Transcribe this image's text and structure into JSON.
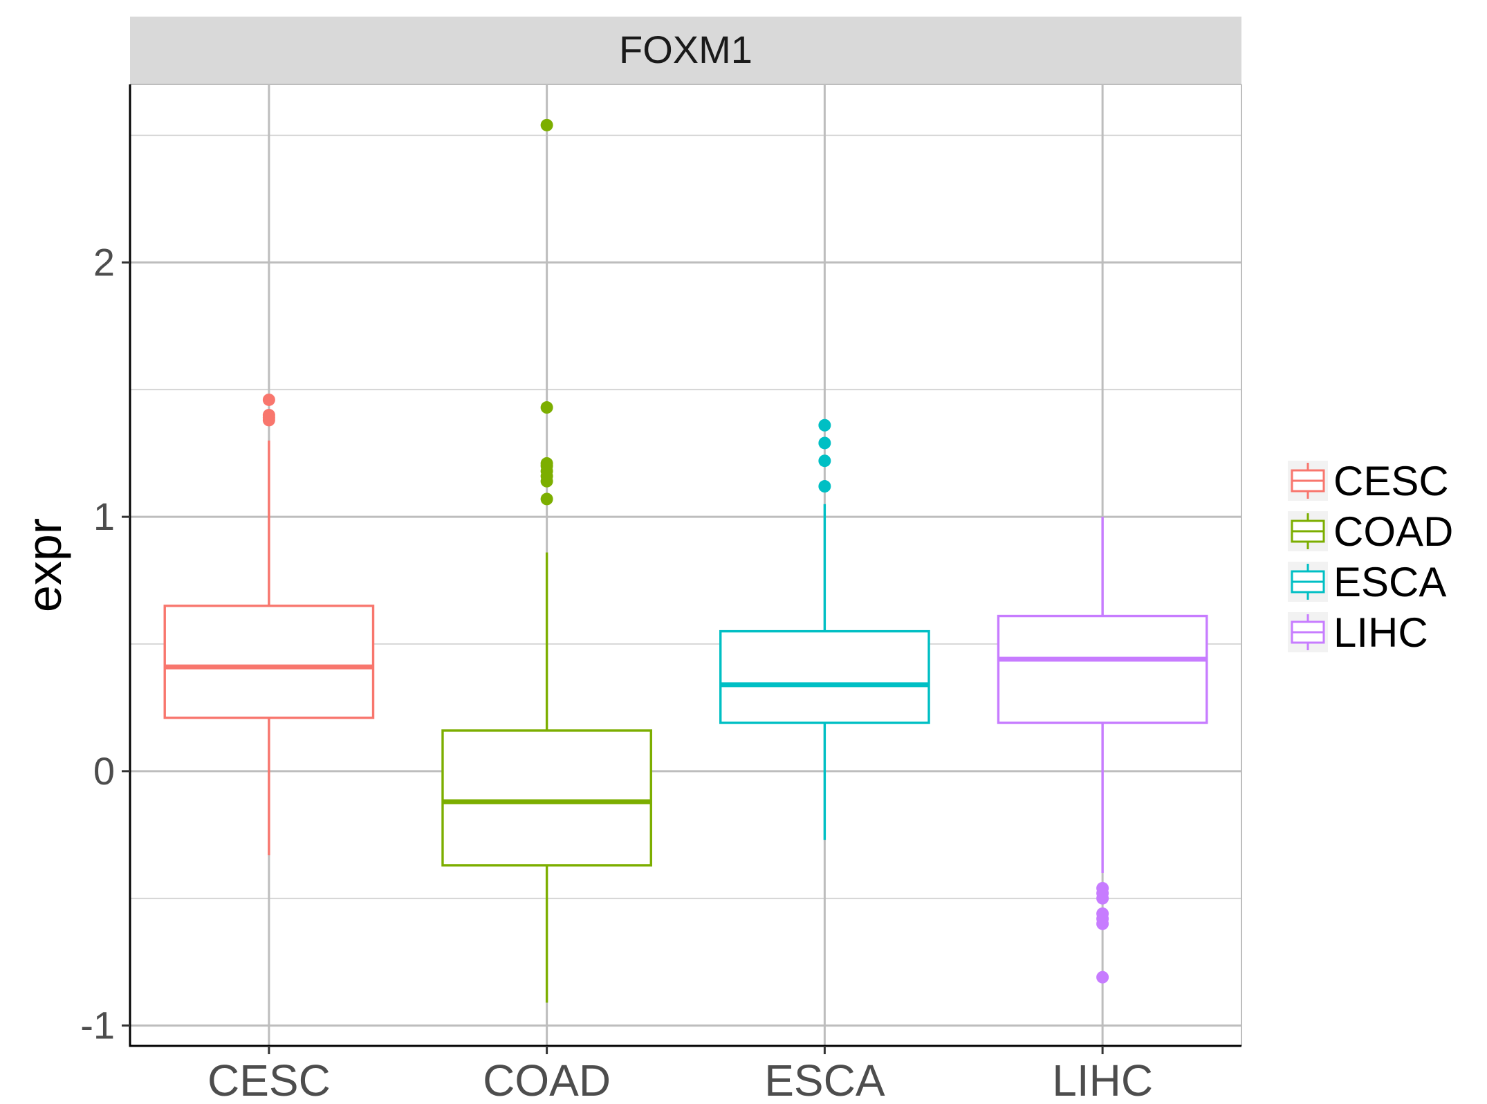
{
  "chart_data": {
    "type": "boxplot",
    "facet_label": "FOXM1",
    "xlabel": "",
    "ylabel": "expr",
    "ylim": [
      -1.08,
      2.7
    ],
    "yticks": [
      -1,
      0,
      1,
      2
    ],
    "ytick_labels": [
      "-1",
      "0",
      "1",
      "2"
    ],
    "y_minor": [
      -0.5,
      0.5,
      1.5,
      2.5
    ],
    "categories": [
      "CESC",
      "COAD",
      "ESCA",
      "LIHC"
    ],
    "grid": true,
    "legend_position": "right",
    "series": [
      {
        "name": "CESC",
        "color": "#F8766D",
        "whisker_low": -0.33,
        "q1": 0.21,
        "median": 0.41,
        "q3": 0.65,
        "whisker_high": 1.3,
        "outliers": [
          1.38,
          1.39,
          1.4,
          1.46
        ]
      },
      {
        "name": "COAD",
        "color": "#7CAE00",
        "whisker_low": -0.91,
        "q1": -0.37,
        "median": -0.12,
        "q3": 0.16,
        "whisker_high": 0.86,
        "outliers": [
          1.07,
          1.14,
          1.16,
          1.18,
          1.2,
          1.21,
          1.43,
          2.54
        ]
      },
      {
        "name": "ESCA",
        "color": "#00BFC4",
        "whisker_low": -0.27,
        "q1": 0.19,
        "median": 0.34,
        "q3": 0.55,
        "whisker_high": 1.05,
        "outliers": [
          1.12,
          1.22,
          1.29,
          1.36
        ]
      },
      {
        "name": "LIHC",
        "color": "#C77CFF",
        "whisker_low": -0.4,
        "q1": 0.19,
        "median": 0.44,
        "q3": 0.61,
        "whisker_high": 1.0,
        "outliers": [
          -0.46,
          -0.48,
          -0.5,
          -0.56,
          -0.58,
          -0.6,
          -0.81
        ]
      }
    ]
  }
}
